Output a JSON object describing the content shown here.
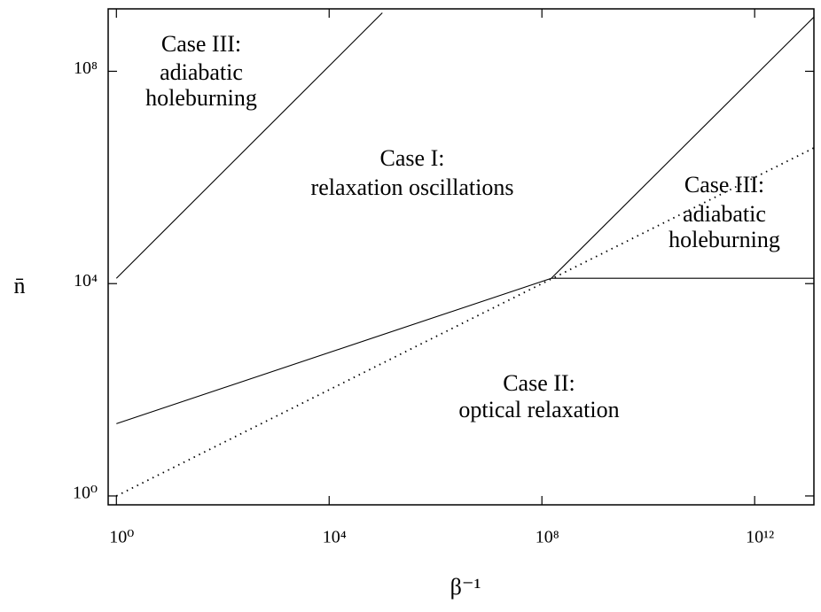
{
  "chart_data": {
    "type": "line",
    "xlabel": "β⁻¹",
    "ylabel": "n̄",
    "xlog": true,
    "ylog": true,
    "xlim": [
      0.7,
      13000000000000.0
    ],
    "ylim": [
      0.68,
      1500000000.0
    ],
    "xticks": [
      {
        "value": 1,
        "label": "10⁰"
      },
      {
        "value": 10000,
        "label": "10⁴"
      },
      {
        "value": 100000000,
        "label": "10⁸"
      },
      {
        "value": 1000000000000,
        "label": "10¹²"
      }
    ],
    "yticks": [
      {
        "value": 1,
        "label": "10⁰"
      },
      {
        "value": 10000,
        "label": "10⁴"
      },
      {
        "value": 100000000,
        "label": "10⁸"
      }
    ],
    "series": [
      {
        "color": "#000000",
        "style": "solid",
        "x": [
          1,
          100000
        ],
        "values": [
          12600,
          1260000000
        ]
      },
      {
        "color": "#000000",
        "style": "solid",
        "x": [
          1,
          150000000
        ],
        "values": [
          23,
          12600
        ]
      },
      {
        "color": "#000000",
        "style": "dotted",
        "x": [
          1,
          13000000000000.0
        ],
        "values": [
          1,
          3600000
        ]
      },
      {
        "color": "#000000",
        "style": "solid",
        "x": [
          150000000,
          13000000000000.0
        ],
        "values": [
          12600,
          1050000000
        ]
      },
      {
        "color": "#000000",
        "style": "solid",
        "x": [
          150000000,
          13000000000000.0
        ],
        "values": [
          12600,
          12600
        ]
      }
    ],
    "annotations": [
      [
        "Case III:",
        "adiabatic",
        "holeburning"
      ],
      [
        "Case I:",
        "relaxation oscillations"
      ],
      [
        "Case III:",
        "adiabatic",
        "holeburning"
      ],
      [
        "Case II:",
        "optical relaxation"
      ]
    ]
  }
}
